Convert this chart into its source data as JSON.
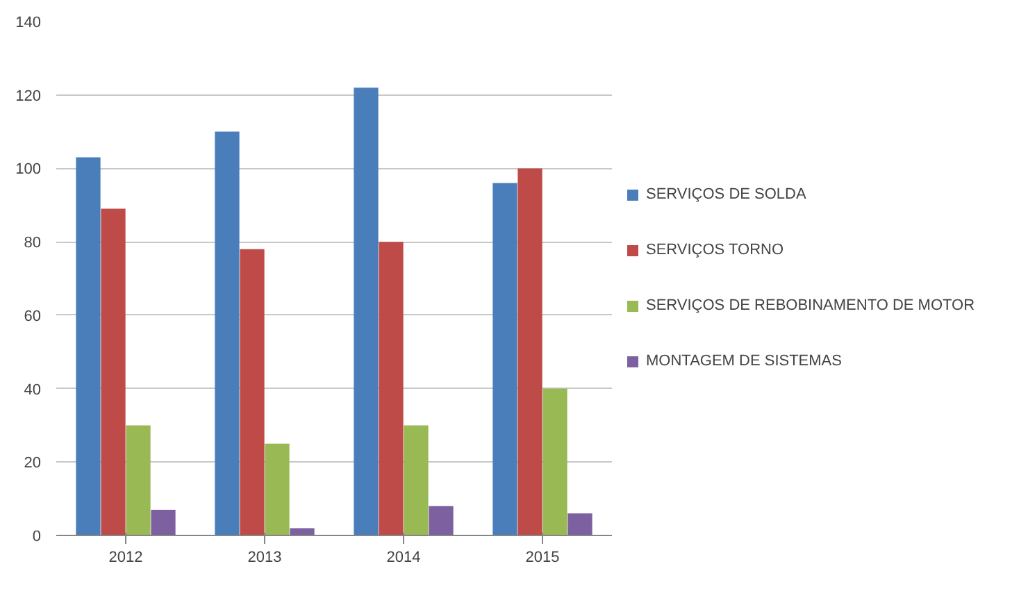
{
  "chart_data": {
    "type": "bar",
    "categories": [
      "2012",
      "2013",
      "2014",
      "2015"
    ],
    "series": [
      {
        "name": "SERVIÇOS DE SOLDA",
        "color": "#4a7ebb",
        "values": [
          103,
          110,
          122,
          96
        ]
      },
      {
        "name": "SERVIÇOS TORNO",
        "color": "#be4b48",
        "values": [
          89,
          78,
          80,
          100
        ]
      },
      {
        "name": "SERVIÇOS DE REBOBINAMENTO DE MOTOR",
        "color": "#98b954",
        "values": [
          30,
          25,
          30,
          40
        ]
      },
      {
        "name": "MONTAGEM DE SISTEMAS",
        "color": "#7d60a0",
        "values": [
          7,
          2,
          8,
          6
        ]
      }
    ],
    "ylim": [
      0,
      140
    ],
    "yticks": [
      0,
      20,
      40,
      60,
      80,
      100,
      120,
      140
    ],
    "grid": "y",
    "legend": "right"
  }
}
